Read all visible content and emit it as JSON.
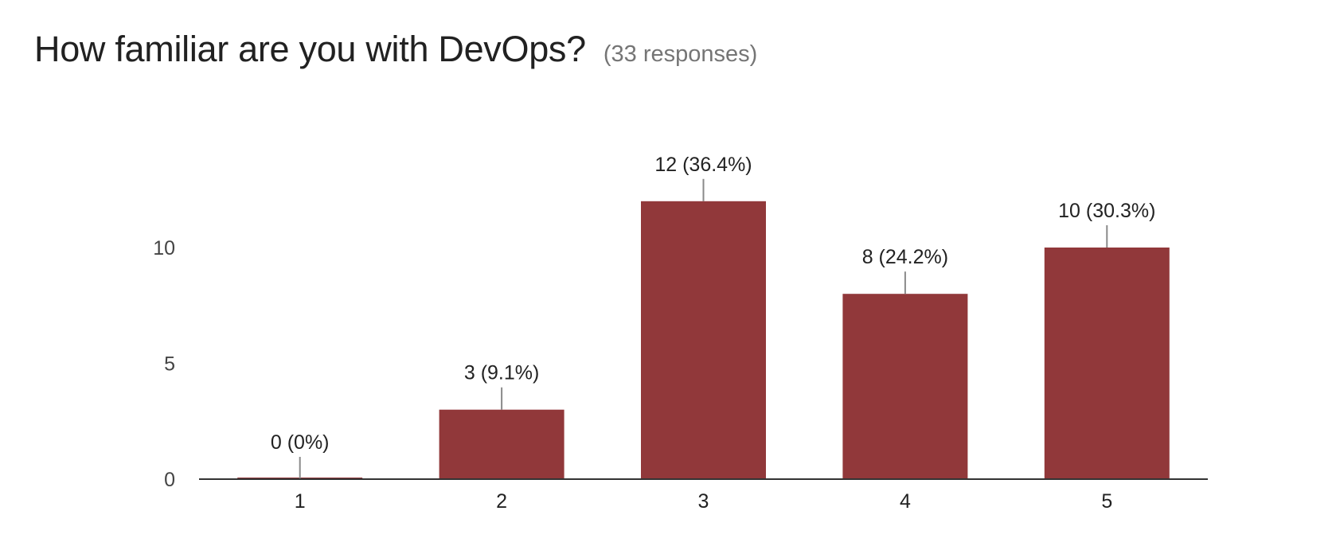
{
  "header": {
    "question": "How familiar are you with DevOps?",
    "responses": "(33 responses)"
  },
  "colors": {
    "bar": "#91383A",
    "axis": "#333333",
    "leader": "#8a8a8a"
  },
  "chart_data": {
    "type": "bar",
    "title": "How familiar are you with DevOps?",
    "subtitle": "(33 responses)",
    "categories": [
      "1",
      "2",
      "3",
      "4",
      "5"
    ],
    "values": [
      0,
      3,
      12,
      8,
      10
    ],
    "data_labels": [
      "0 (0%)",
      "3 (9.1%)",
      "12 (36.4%)",
      "8 (24.2%)",
      "10 (30.3%)"
    ],
    "xlabel": "",
    "ylabel": "",
    "yticks": [
      0,
      5,
      10
    ],
    "ylim": [
      0,
      12.5
    ],
    "grid": false,
    "legend": "none"
  }
}
